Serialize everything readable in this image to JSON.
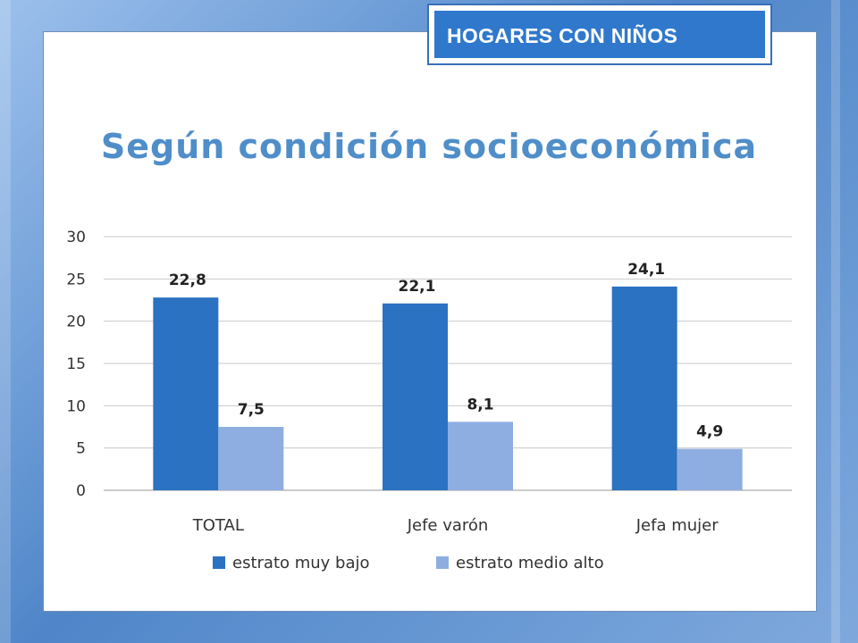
{
  "tag": "HOGARES CON NIÑOS",
  "title": "Según condición socioeconómica",
  "colors": {
    "series1": "#2b72c2",
    "series2": "#8eaee2",
    "title": "#4f8ec9",
    "tag": "#2f78cc"
  },
  "chart_data": {
    "type": "bar",
    "categories": [
      "TOTAL",
      "Jefe varón",
      "Jefa mujer"
    ],
    "series": [
      {
        "name": "estrato muy bajo",
        "values": [
          22.8,
          22.1,
          24.1
        ],
        "labels": [
          "22,8",
          "22,1",
          "24,1"
        ]
      },
      {
        "name": "estrato medio alto",
        "values": [
          7.5,
          8.1,
          4.9
        ],
        "labels": [
          "7,5",
          "8,1",
          "4,9"
        ]
      }
    ],
    "ylim": [
      0,
      30
    ],
    "yticks": [
      "0",
      "5",
      "10",
      "15",
      "20",
      "25",
      "30"
    ],
    "grid": true,
    "legend": "bottom"
  }
}
